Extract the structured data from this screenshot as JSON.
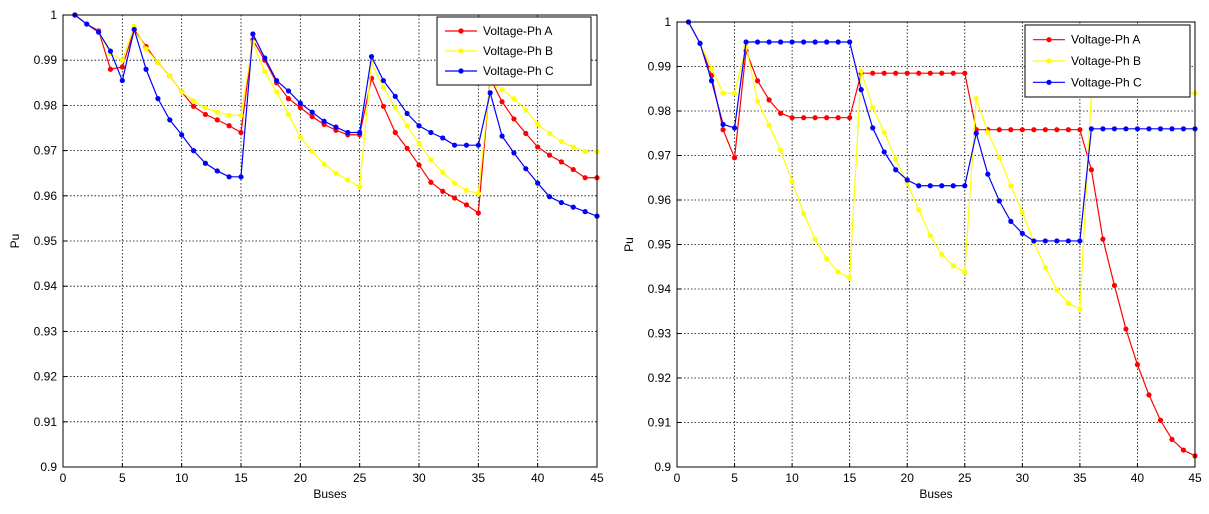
{
  "chart_data": [
    {
      "type": "line",
      "xlabel": "Buses",
      "ylabel": "Pu",
      "xlim": [
        0,
        45
      ],
      "ylim": [
        0.9,
        1
      ],
      "xticks": [
        "0",
        "5",
        "10",
        "15",
        "20",
        "25",
        "30",
        "35",
        "40",
        "45"
      ],
      "yticks": [
        "0.9",
        "0.91",
        "0.92",
        "0.93",
        "0.94",
        "0.95",
        "0.96",
        "0.97",
        "0.98",
        "0.99",
        "1"
      ],
      "grid": true,
      "legend_position": "top-right",
      "x": [
        1,
        2,
        3,
        4,
        5,
        6,
        7,
        8,
        9,
        10,
        11,
        12,
        13,
        14,
        15,
        16,
        17,
        18,
        19,
        20,
        21,
        22,
        23,
        24,
        25,
        26,
        27,
        28,
        29,
        30,
        31,
        32,
        33,
        34,
        35,
        36,
        37,
        38,
        39,
        40,
        41,
        42,
        43,
        44,
        45
      ],
      "series": [
        {
          "name": "Voltage-Ph A",
          "color": "#ff0000",
          "values": [
            1.0,
            0.998,
            0.9965,
            0.988,
            0.9885,
            0.9968,
            0.993,
            0.9895,
            0.9865,
            0.983,
            0.9798,
            0.978,
            0.9768,
            0.9755,
            0.974,
            0.9945,
            0.99,
            0.985,
            0.9815,
            0.9795,
            0.9775,
            0.9758,
            0.9745,
            0.9735,
            0.9735,
            0.986,
            0.9798,
            0.974,
            0.9705,
            0.9668,
            0.963,
            0.961,
            0.9595,
            0.958,
            0.9562,
            0.986,
            0.9808,
            0.977,
            0.9738,
            0.9708,
            0.969,
            0.9675,
            0.9658,
            0.964,
            0.964
          ]
        },
        {
          "name": "Voltage-Ph B",
          "color": "#ffff00",
          "values": [
            1.0,
            0.998,
            0.9962,
            0.9915,
            0.99,
            0.9975,
            0.9925,
            0.9895,
            0.9865,
            0.983,
            0.981,
            0.9795,
            0.9785,
            0.9778,
            0.9778,
            0.994,
            0.9875,
            0.983,
            0.978,
            0.973,
            0.9698,
            0.967,
            0.965,
            0.9635,
            0.962,
            0.9895,
            0.984,
            0.9795,
            0.9755,
            0.9715,
            0.968,
            0.9652,
            0.9628,
            0.9612,
            0.9605,
            0.985,
            0.9835,
            0.9815,
            0.979,
            0.9758,
            0.9738,
            0.972,
            0.9708,
            0.9698,
            0.9698
          ]
        },
        {
          "name": "Voltage-Ph C",
          "color": "#0000ff",
          "values": [
            1.0,
            0.998,
            0.9962,
            0.992,
            0.9855,
            0.9968,
            0.988,
            0.9815,
            0.9768,
            0.9735,
            0.97,
            0.9672,
            0.9655,
            0.9642,
            0.9642,
            0.9958,
            0.9905,
            0.9855,
            0.9832,
            0.9805,
            0.9785,
            0.9765,
            0.9752,
            0.974,
            0.974,
            0.9908,
            0.9855,
            0.982,
            0.9782,
            0.9755,
            0.974,
            0.9728,
            0.9712,
            0.9712,
            0.9712,
            0.9828,
            0.9732,
            0.9695,
            0.966,
            0.9628,
            0.9598,
            0.9585,
            0.9575,
            0.9565,
            0.9555
          ]
        }
      ]
    },
    {
      "type": "line",
      "xlabel": "Buses",
      "ylabel": "Pu",
      "xlim": [
        0,
        45
      ],
      "ylim": [
        0.9,
        1
      ],
      "xticks": [
        "0",
        "5",
        "10",
        "15",
        "20",
        "25",
        "30",
        "35",
        "40",
        "45"
      ],
      "yticks": [
        "0.9",
        "0.91",
        "0.92",
        "0.93",
        "0.94",
        "0.95",
        "0.96",
        "0.97",
        "0.98",
        "0.99",
        "1"
      ],
      "grid": true,
      "legend_position": "top-right",
      "x": [
        1,
        2,
        3,
        4,
        5,
        6,
        7,
        8,
        9,
        10,
        11,
        12,
        13,
        14,
        15,
        16,
        17,
        18,
        19,
        20,
        21,
        22,
        23,
        24,
        25,
        26,
        27,
        28,
        29,
        30,
        31,
        32,
        33,
        34,
        35,
        36,
        37,
        38,
        39,
        40,
        41,
        42,
        43,
        44,
        45
      ],
      "series": [
        {
          "name": "Voltage-Ph A",
          "color": "#ff0000",
          "values": [
            1.0,
            0.9952,
            0.988,
            0.9758,
            0.9695,
            0.9935,
            0.9868,
            0.9825,
            0.9795,
            0.9785,
            0.9785,
            0.9785,
            0.9785,
            0.9785,
            0.9785,
            0.9885,
            0.9885,
            0.9885,
            0.9885,
            0.9885,
            0.9885,
            0.9885,
            0.9885,
            0.9885,
            0.9885,
            0.9758,
            0.9758,
            0.9758,
            0.9758,
            0.9758,
            0.9758,
            0.9758,
            0.9758,
            0.9758,
            0.9758,
            0.9668,
            0.9512,
            0.9408,
            0.931,
            0.923,
            0.9162,
            0.9105,
            0.9062,
            0.9038,
            0.9025
          ]
        },
        {
          "name": "Voltage-Ph B",
          "color": "#ffff00",
          "values": [
            1.0,
            0.9952,
            0.9895,
            0.984,
            0.984,
            0.9945,
            0.9822,
            0.9768,
            0.9712,
            0.9642,
            0.957,
            0.9512,
            0.9468,
            0.9438,
            0.9425,
            0.989,
            0.9808,
            0.9752,
            0.9692,
            0.9638,
            0.9578,
            0.952,
            0.9478,
            0.9452,
            0.9438,
            0.9828,
            0.9752,
            0.9695,
            0.9632,
            0.9572,
            0.9505,
            0.9448,
            0.9398,
            0.9368,
            0.9355,
            0.984,
            0.984,
            0.984,
            0.984,
            0.984,
            0.984,
            0.984,
            0.984,
            0.984,
            0.984
          ]
        },
        {
          "name": "Voltage-Ph C",
          "color": "#0000ff",
          "values": [
            1.0,
            0.9952,
            0.9868,
            0.977,
            0.9762,
            0.9955,
            0.9955,
            0.9955,
            0.9955,
            0.9955,
            0.9955,
            0.9955,
            0.9955,
            0.9955,
            0.9955,
            0.9848,
            0.9762,
            0.9708,
            0.9668,
            0.9645,
            0.9632,
            0.9632,
            0.9632,
            0.9632,
            0.9632,
            0.975,
            0.9658,
            0.9598,
            0.9552,
            0.9525,
            0.9508,
            0.9508,
            0.9508,
            0.9508,
            0.9508,
            0.976,
            0.976,
            0.976,
            0.976,
            0.976,
            0.976,
            0.976,
            0.976,
            0.976,
            0.976
          ]
        }
      ]
    }
  ]
}
